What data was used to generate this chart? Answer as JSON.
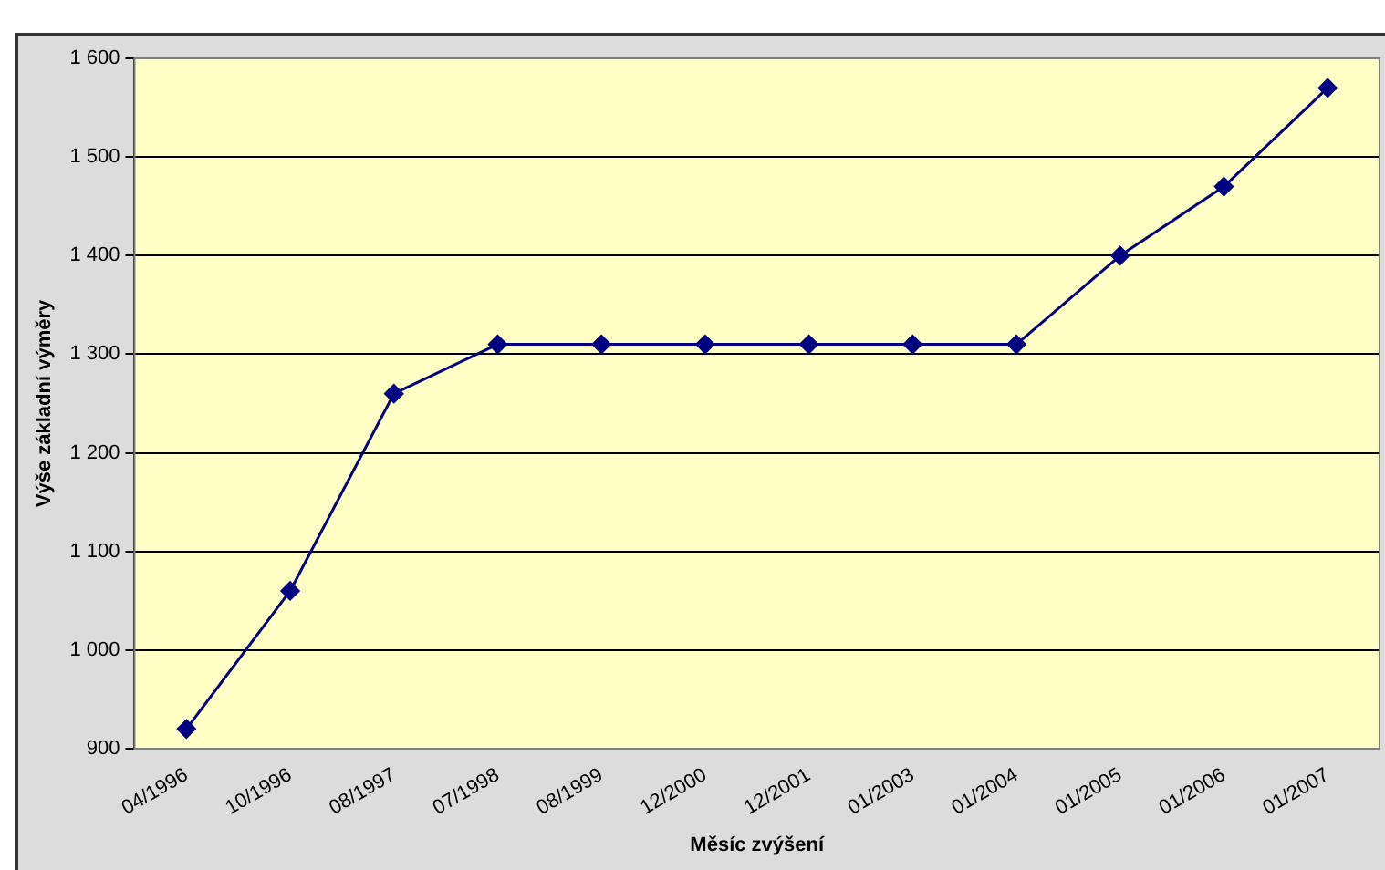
{
  "chart_data": {
    "type": "line",
    "xlabel": "Měsíc zvýšení",
    "ylabel": "Výše základní výměry",
    "categories": [
      "04/1996",
      "10/1996",
      "08/1997",
      "07/1998",
      "08/1999",
      "12/2000",
      "12/2001",
      "01/2003",
      "01/2004",
      "01/2005",
      "01/2006",
      "01/2007"
    ],
    "series": [
      {
        "color": "#000080",
        "values": [
          920,
          1060,
          1260,
          1310,
          1310,
          1310,
          1310,
          1310,
          1310,
          1400,
          1470,
          1570
        ]
      }
    ],
    "ylim": [
      900,
      1600
    ],
    "yticks": [
      {
        "value": 900,
        "label": "900"
      },
      {
        "value": 1000,
        "label": "1 000"
      },
      {
        "value": 1100,
        "label": "1 100"
      },
      {
        "value": 1200,
        "label": "1 200"
      },
      {
        "value": 1300,
        "label": "1 300"
      },
      {
        "value": 1400,
        "label": "1 400"
      },
      {
        "value": 1500,
        "label": "1 500"
      },
      {
        "value": 1600,
        "label": "1 600"
      }
    ],
    "grid": "y",
    "legend": false,
    "marker": "diamond",
    "line_style": "solid"
  }
}
